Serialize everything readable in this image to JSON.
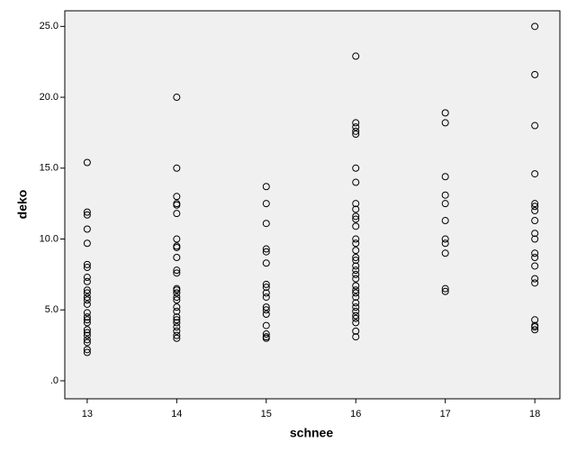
{
  "chart_data": {
    "type": "scatter",
    "x_label": "schnee",
    "y_label": "deko",
    "x": [
      13,
      13,
      13,
      13,
      13,
      13,
      13,
      13,
      13,
      13,
      13,
      13,
      13,
      13,
      13,
      13,
      13,
      13,
      13,
      13,
      13,
      13,
      13,
      13,
      13,
      14,
      14,
      14,
      14,
      14,
      14,
      14,
      14,
      14,
      14,
      14,
      14,
      14,
      14,
      14,
      14,
      14,
      14,
      14,
      14,
      14,
      14,
      14,
      14,
      14,
      14,
      15,
      15,
      15,
      15,
      15,
      15,
      15,
      15,
      15,
      15,
      15,
      15,
      15,
      15,
      15,
      15,
      15,
      16,
      16,
      16,
      16,
      16,
      16,
      16,
      16,
      16,
      16,
      16,
      16,
      16,
      16,
      16,
      16,
      16,
      16,
      16,
      16,
      16,
      16,
      16,
      16,
      16,
      16,
      16,
      16,
      16,
      16,
      16,
      16,
      16,
      17,
      17,
      17,
      17,
      17,
      17,
      17,
      17,
      17,
      17,
      17,
      18,
      18,
      18,
      18,
      18,
      18,
      18,
      18,
      18,
      18,
      18,
      18,
      18,
      18,
      18,
      18,
      18,
      18,
      18
    ],
    "values": [
      15.4,
      11.9,
      11.7,
      10.7,
      9.7,
      8.2,
      8.0,
      7.3,
      7.0,
      6.4,
      6.2,
      5.9,
      5.7,
      5.4,
      4.8,
      4.5,
      4.3,
      4.1,
      3.6,
      3.4,
      3.2,
      2.9,
      2.7,
      2.2,
      2.0,
      20.0,
      15.0,
      13.0,
      12.5,
      12.4,
      11.8,
      10.0,
      9.5,
      9.4,
      8.7,
      7.8,
      7.6,
      6.5,
      6.4,
      6.2,
      5.9,
      5.7,
      5.2,
      4.9,
      4.5,
      4.3,
      4.1,
      3.8,
      3.5,
      3.2,
      3.0,
      13.7,
      12.5,
      11.1,
      9.3,
      9.1,
      8.3,
      6.8,
      6.6,
      6.2,
      5.9,
      5.2,
      5.0,
      4.7,
      3.9,
      3.3,
      3.1,
      3.0,
      22.9,
      18.2,
      17.9,
      17.6,
      17.4,
      15.0,
      14.0,
      12.5,
      12.1,
      11.6,
      11.4,
      10.9,
      10.0,
      9.7,
      9.2,
      8.7,
      8.5,
      8.1,
      7.8,
      7.5,
      7.2,
      6.7,
      6.4,
      6.2,
      5.9,
      5.5,
      5.2,
      4.9,
      4.6,
      4.4,
      4.1,
      3.5,
      3.1,
      18.9,
      18.2,
      14.4,
      13.1,
      12.5,
      11.3,
      10.0,
      9.7,
      9.0,
      6.5,
      6.3,
      25.0,
      21.6,
      18.0,
      14.6,
      12.5,
      12.3,
      12.0,
      11.3,
      10.4,
      10.0,
      9.0,
      8.7,
      8.1,
      7.2,
      6.9,
      4.3,
      3.9,
      3.8,
      3.6
    ],
    "color": "#000000",
    "xlim": [
      12.75,
      18.28
    ],
    "xticks": [
      13,
      14,
      15,
      16,
      17,
      18
    ],
    "ylim": [
      -1.27,
      26.1
    ],
    "yticks": [
      {
        "value": 0,
        "label": ".0"
      },
      {
        "value": 5,
        "label": "5.0"
      },
      {
        "value": 10,
        "label": "10.0"
      },
      {
        "value": 15,
        "label": "15.0"
      },
      {
        "value": 20,
        "label": "20.0"
      },
      {
        "value": 25,
        "label": "25.0"
      }
    ],
    "grid": false
  }
}
